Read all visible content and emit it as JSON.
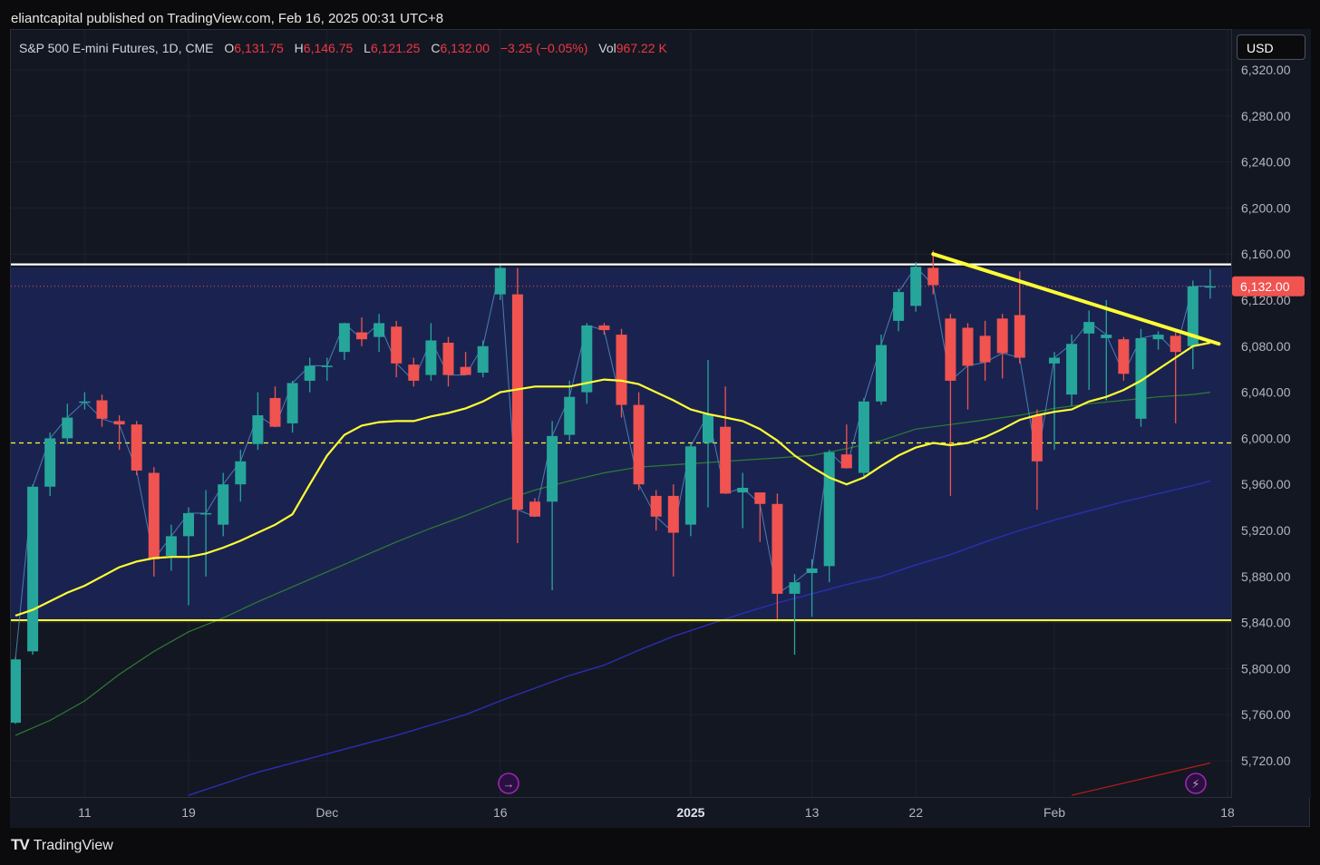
{
  "header": {
    "published_text": "eliantcapital published on TradingView.com, Feb 16, 2025 00:31 UTC+8"
  },
  "legend": {
    "symbol": "S&P 500 E-mini Futures, 1D, CME",
    "o_label": "O",
    "o_value": "6,131.75",
    "h_label": "H",
    "h_value": "6,146.75",
    "l_label": "L",
    "l_value": "6,121.25",
    "c_label": "C",
    "c_value": "6,132.00",
    "change": "−3.25 (−0.05%)",
    "vol_label": "Vol",
    "vol_value": "967.22 K"
  },
  "currency": "USD",
  "footer": {
    "logo_mark": "TV",
    "brand": "TradingView"
  },
  "colors": {
    "up": "#26a69a",
    "down": "#f05350",
    "ma_yellow": "#ffff33",
    "ma_green": "#2e7d32",
    "ma_blue": "#1a237e",
    "ma_red": "#b71c1c",
    "range_fill": "#1a2453",
    "resistance": "#ffffff",
    "support": "#ffff33",
    "trendline": "#ffff33",
    "price_label_bg": "#f05350",
    "marker": "#9c27b0"
  },
  "chart_data": {
    "type": "candlestick",
    "ylim": [
      5690,
      6340
    ],
    "y_ticks": [
      "6,320.00",
      "6,280.00",
      "6,240.00",
      "6,200.00",
      "6,160.00",
      "6,120.00",
      "6,080.00",
      "6,040.00",
      "6,000.00",
      "5,960.00",
      "5,920.00",
      "5,880.00",
      "5,840.00",
      "5,800.00",
      "5,760.00",
      "5,720.00"
    ],
    "y_tick_values": [
      6320,
      6280,
      6240,
      6200,
      6160,
      6120,
      6080,
      6040,
      6000,
      5960,
      5920,
      5880,
      5840,
      5800,
      5760,
      5720
    ],
    "x_labels": [
      {
        "i": 4,
        "text": "11",
        "bold": false
      },
      {
        "i": 10,
        "text": "19",
        "bold": false
      },
      {
        "i": 18,
        "text": "Dec",
        "bold": false
      },
      {
        "i": 28,
        "text": "16",
        "bold": false
      },
      {
        "i": 39,
        "text": "2025",
        "bold": true
      },
      {
        "i": 46,
        "text": "13",
        "bold": false
      },
      {
        "i": 52,
        "text": "22",
        "bold": false
      },
      {
        "i": 60,
        "text": "Feb",
        "bold": false
      },
      {
        "i": 70,
        "text": "18",
        "bold": false
      }
    ],
    "last_price": 6132.0,
    "last_price_label": "6,132.00",
    "candles": [
      {
        "o": 5753,
        "h": 5810,
        "l": 5752,
        "c": 5808
      },
      {
        "o": 5815,
        "h": 5960,
        "l": 5812,
        "c": 5958
      },
      {
        "o": 5958,
        "h": 6005,
        "l": 5950,
        "c": 6000
      },
      {
        "o": 6000,
        "h": 6030,
        "l": 5995,
        "c": 6018
      },
      {
        "o": 6032,
        "h": 6040,
        "l": 6025,
        "c": 6032
      },
      {
        "o": 6033,
        "h": 6038,
        "l": 6010,
        "c": 6017
      },
      {
        "o": 6015,
        "h": 6020,
        "l": 5990,
        "c": 6012
      },
      {
        "o": 6012,
        "h": 6015,
        "l": 5968,
        "c": 5972
      },
      {
        "o": 5970,
        "h": 5975,
        "l": 5880,
        "c": 5895
      },
      {
        "o": 5898,
        "h": 5925,
        "l": 5885,
        "c": 5915
      },
      {
        "o": 5915,
        "h": 5940,
        "l": 5855,
        "c": 5935
      },
      {
        "o": 5935,
        "h": 5955,
        "l": 5880,
        "c": 5935
      },
      {
        "o": 5925,
        "h": 5970,
        "l": 5915,
        "c": 5960
      },
      {
        "o": 5960,
        "h": 5990,
        "l": 5945,
        "c": 5980
      },
      {
        "o": 5995,
        "h": 6040,
        "l": 5990,
        "c": 6020
      },
      {
        "o": 6035,
        "h": 6045,
        "l": 6010,
        "c": 6010
      },
      {
        "o": 6013,
        "h": 6050,
        "l": 6005,
        "c": 6048
      },
      {
        "o": 6050,
        "h": 6070,
        "l": 6040,
        "c": 6063
      },
      {
        "o": 6063,
        "h": 6070,
        "l": 6050,
        "c": 6063
      },
      {
        "o": 6075,
        "h": 6100,
        "l": 6068,
        "c": 6100
      },
      {
        "o": 6092,
        "h": 6105,
        "l": 6080,
        "c": 6086
      },
      {
        "o": 6088,
        "h": 6108,
        "l": 6075,
        "c": 6100
      },
      {
        "o": 6097,
        "h": 6102,
        "l": 6053,
        "c": 6065
      },
      {
        "o": 6064,
        "h": 6070,
        "l": 6045,
        "c": 6050
      },
      {
        "o": 6055,
        "h": 6100,
        "l": 6050,
        "c": 6085
      },
      {
        "o": 6083,
        "h": 6088,
        "l": 6045,
        "c": 6055
      },
      {
        "o": 6062,
        "h": 6075,
        "l": 6055,
        "c": 6055
      },
      {
        "o": 6057,
        "h": 6085,
        "l": 6053,
        "c": 6080
      },
      {
        "o": 6125,
        "h": 6150,
        "l": 6120,
        "c": 6148
      },
      {
        "o": 6125,
        "h": 6148,
        "l": 5909,
        "c": 5938
      },
      {
        "o": 5945,
        "h": 5948,
        "l": 5932,
        "c": 5932
      },
      {
        "o": 5945,
        "h": 6015,
        "l": 5868,
        "c": 6002
      },
      {
        "o": 6003,
        "h": 6050,
        "l": 5998,
        "c": 6036
      },
      {
        "o": 6040,
        "h": 6100,
        "l": 6030,
        "c": 6098
      },
      {
        "o": 6098,
        "h": 6100,
        "l": 6090,
        "c": 6094
      },
      {
        "o": 6090,
        "h": 6095,
        "l": 6018,
        "c": 6029
      },
      {
        "o": 6029,
        "h": 6040,
        "l": 5955,
        "c": 5960
      },
      {
        "o": 5950,
        "h": 5955,
        "l": 5920,
        "c": 5932
      },
      {
        "o": 5950,
        "h": 5960,
        "l": 5880,
        "c": 5918
      },
      {
        "o": 5925,
        "h": 5995,
        "l": 5915,
        "c": 5993
      },
      {
        "o": 5996,
        "h": 6068,
        "l": 5940,
        "c": 6021
      },
      {
        "o": 6010,
        "h": 6045,
        "l": 5955,
        "c": 5952
      },
      {
        "o": 5953,
        "h": 5970,
        "l": 5922,
        "c": 5957
      },
      {
        "o": 5953,
        "h": 5950,
        "l": 5910,
        "c": 5943
      },
      {
        "o": 5943,
        "h": 5952,
        "l": 5843,
        "c": 5865
      },
      {
        "o": 5865,
        "h": 5882,
        "l": 5812,
        "c": 5875
      },
      {
        "o": 5883,
        "h": 5895,
        "l": 5845,
        "c": 5887
      },
      {
        "o": 5889,
        "h": 5990,
        "l": 5875,
        "c": 5988
      },
      {
        "o": 5986,
        "h": 6012,
        "l": 5975,
        "c": 5974
      },
      {
        "o": 5970,
        "h": 6035,
        "l": 5965,
        "c": 6032
      },
      {
        "o": 6032,
        "h": 6090,
        "l": 6029,
        "c": 6081
      },
      {
        "o": 6102,
        "h": 6130,
        "l": 6093,
        "c": 6127
      },
      {
        "o": 6115,
        "h": 6153,
        "l": 6110,
        "c": 6149
      },
      {
        "o": 6148,
        "h": 6163,
        "l": 6125,
        "c": 6133
      },
      {
        "o": 6104,
        "h": 6108,
        "l": 5950,
        "c": 6050
      },
      {
        "o": 6096,
        "h": 6100,
        "l": 6025,
        "c": 6063
      },
      {
        "o": 6089,
        "h": 6102,
        "l": 6050,
        "c": 6066
      },
      {
        "o": 6104,
        "h": 6108,
        "l": 6052,
        "c": 6074
      },
      {
        "o": 6107,
        "h": 6145,
        "l": 6065,
        "c": 6070
      },
      {
        "o": 6020,
        "h": 6025,
        "l": 5938,
        "c": 5980
      },
      {
        "o": 6065,
        "h": 6075,
        "l": 5990,
        "c": 6070
      },
      {
        "o": 6038,
        "h": 6090,
        "l": 6028,
        "c": 6082
      },
      {
        "o": 6091,
        "h": 6111,
        "l": 6042,
        "c": 6101
      },
      {
        "o": 6087,
        "h": 6120,
        "l": 6033,
        "c": 6090
      },
      {
        "o": 6086,
        "h": 6088,
        "l": 6050,
        "c": 6056
      },
      {
        "o": 6017,
        "h": 6095,
        "l": 6010,
        "c": 6087
      },
      {
        "o": 6086,
        "h": 6093,
        "l": 6077,
        "c": 6090
      },
      {
        "o": 6089,
        "h": 6092,
        "l": 6013,
        "c": 6075
      },
      {
        "o": 6080,
        "h": 6137,
        "l": 6060,
        "c": 6132
      },
      {
        "o": 6131.75,
        "h": 6146.75,
        "l": 6121.25,
        "c": 6132
      }
    ],
    "ma_yellow": [
      [
        0,
        5846
      ],
      [
        1,
        5851
      ],
      [
        3,
        5866
      ],
      [
        4,
        5872
      ],
      [
        5,
        5880
      ],
      [
        6,
        5888
      ],
      [
        7,
        5893
      ],
      [
        8,
        5896
      ],
      [
        9,
        5897
      ],
      [
        10,
        5897
      ],
      [
        11,
        5900
      ],
      [
        12,
        5905
      ],
      [
        13,
        5911
      ],
      [
        14,
        5918
      ],
      [
        15,
        5925
      ],
      [
        16,
        5934
      ],
      [
        17,
        5960
      ],
      [
        18,
        5985
      ],
      [
        19,
        6003
      ],
      [
        20,
        6011
      ],
      [
        21,
        6014
      ],
      [
        22,
        6015
      ],
      [
        23,
        6015
      ],
      [
        24,
        6019
      ],
      [
        25,
        6022
      ],
      [
        26,
        6026
      ],
      [
        27,
        6032
      ],
      [
        28,
        6040
      ],
      [
        30,
        6045
      ],
      [
        32,
        6045
      ],
      [
        34,
        6051
      ],
      [
        35,
        6050
      ],
      [
        36,
        6047
      ],
      [
        37,
        6040
      ],
      [
        38,
        6033
      ],
      [
        39,
        6025
      ],
      [
        40,
        6021
      ],
      [
        41,
        6018
      ],
      [
        42,
        6015
      ],
      [
        43,
        6008
      ],
      [
        44,
        5998
      ],
      [
        45,
        5985
      ],
      [
        46,
        5975
      ],
      [
        47,
        5966
      ],
      [
        48,
        5960
      ],
      [
        49,
        5966
      ],
      [
        50,
        5976
      ],
      [
        51,
        5985
      ],
      [
        52,
        5992
      ],
      [
        53,
        5996
      ],
      [
        54,
        5994
      ],
      [
        55,
        5996
      ],
      [
        56,
        6001
      ],
      [
        57,
        6008
      ],
      [
        58,
        6016
      ],
      [
        59,
        6020
      ],
      [
        60,
        6023
      ],
      [
        61,
        6025
      ],
      [
        62,
        6032
      ],
      [
        63,
        6036
      ],
      [
        64,
        6042
      ],
      [
        65,
        6050
      ],
      [
        66,
        6060
      ],
      [
        67,
        6070
      ],
      [
        68,
        6080
      ],
      [
        69,
        6083
      ]
    ],
    "ma_green": [
      [
        0,
        5742
      ],
      [
        2,
        5755
      ],
      [
        4,
        5772
      ],
      [
        6,
        5795
      ],
      [
        8,
        5815
      ],
      [
        10,
        5832
      ],
      [
        12,
        5844
      ],
      [
        14,
        5858
      ],
      [
        16,
        5871
      ],
      [
        18,
        5884
      ],
      [
        20,
        5897
      ],
      [
        22,
        5910
      ],
      [
        24,
        5922
      ],
      [
        26,
        5933
      ],
      [
        28,
        5945
      ],
      [
        30,
        5955
      ],
      [
        32,
        5963
      ],
      [
        34,
        5970
      ],
      [
        36,
        5975
      ],
      [
        38,
        5977
      ],
      [
        40,
        5979
      ],
      [
        42,
        5981
      ],
      [
        44,
        5983
      ],
      [
        46,
        5985
      ],
      [
        48,
        5991
      ],
      [
        50,
        5998
      ],
      [
        52,
        6008
      ],
      [
        54,
        6012
      ],
      [
        56,
        6016
      ],
      [
        58,
        6020
      ],
      [
        60,
        6026
      ],
      [
        62,
        6030
      ],
      [
        64,
        6033
      ],
      [
        66,
        6036
      ],
      [
        68,
        6038
      ],
      [
        69,
        6040
      ]
    ],
    "ma_blue": [
      [
        10,
        5690
      ],
      [
        14,
        5710
      ],
      [
        18,
        5726
      ],
      [
        22,
        5742
      ],
      [
        26,
        5760
      ],
      [
        28,
        5772
      ],
      [
        30,
        5783
      ],
      [
        32,
        5794
      ],
      [
        34,
        5803
      ],
      [
        36,
        5816
      ],
      [
        38,
        5828
      ],
      [
        40,
        5838
      ],
      [
        42,
        5848
      ],
      [
        44,
        5857
      ],
      [
        46,
        5865
      ],
      [
        48,
        5873
      ],
      [
        50,
        5880
      ],
      [
        52,
        5890
      ],
      [
        54,
        5899
      ],
      [
        56,
        5910
      ],
      [
        58,
        5920
      ],
      [
        60,
        5929
      ],
      [
        62,
        5937
      ],
      [
        64,
        5945
      ],
      [
        66,
        5952
      ],
      [
        68,
        5959
      ],
      [
        69,
        5963
      ]
    ],
    "ma_red": [
      [
        61,
        5690
      ],
      [
        69,
        5718
      ]
    ],
    "range_zone": {
      "top": 6148.5,
      "bottom": 5842
    },
    "resistance_level": 6151,
    "support_level": 5842,
    "dashed_level": 5996,
    "trendline": [
      [
        53,
        6160
      ],
      [
        69.5,
        6082
      ]
    ]
  }
}
